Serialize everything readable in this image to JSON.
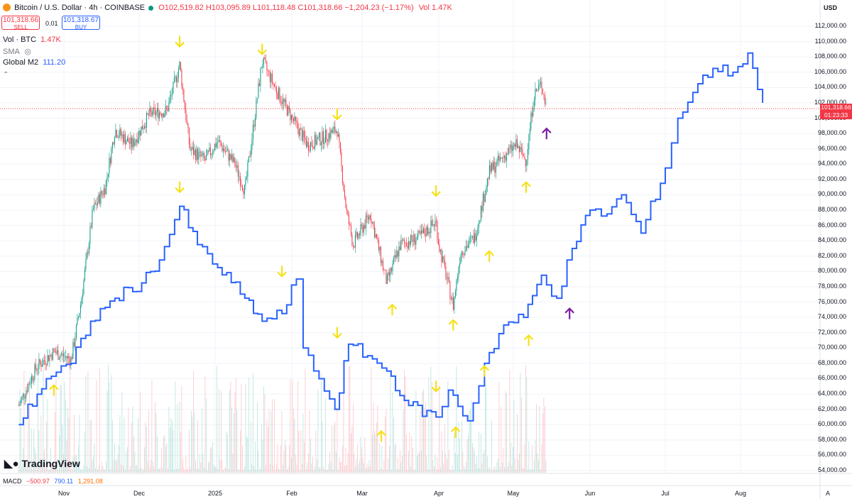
{
  "header": {
    "symbol": "Bitcoin / U.S. Dollar · 4h · COINBASE",
    "ohlc": "O102,519.82 H103,095.89 L101,118.48 C101,318.66 −1,204.23 (−1.17%)",
    "vol": "Vol 1.47K",
    "sell_price": "101,318.66",
    "sell_label": "SELL",
    "spread": "0.01",
    "buy_price": "101,318.67",
    "buy_label": "BUY"
  },
  "legend": {
    "vol_name": "Vol · BTC",
    "vol_value": "1.47K",
    "sma_label": "SMA",
    "m2_name": "Global M2",
    "m2_value": "111.20"
  },
  "macd": {
    "label": "MACD",
    "v1": "−500.97",
    "v2": "790.11",
    "v3": "1,291.08"
  },
  "price_axis": {
    "currency": "USD",
    "current_price": "101,318.66",
    "countdown": "01:23:33"
  },
  "branding": {
    "logo_text": "TradingView"
  },
  "colors": {
    "up": "#089981",
    "down": "#f23645",
    "m2_line": "#2962ff",
    "arrow_yellow": "#f5e11b",
    "arrow_purple": "#7b1fa2"
  },
  "chart_data": {
    "type": "line",
    "x_labels": [
      "Nov",
      "Dec",
      "2025",
      "Feb",
      "Mar",
      "Apr",
      "May",
      "Jun",
      "Jul",
      "Aug"
    ],
    "y_ticks": [
      54000,
      56000,
      58000,
      60000,
      62000,
      64000,
      66000,
      68000,
      70000,
      72000,
      74000,
      76000,
      78000,
      80000,
      82000,
      84000,
      86000,
      88000,
      90000,
      92000,
      94000,
      96000,
      98000,
      100000,
      102000,
      104000,
      106000,
      108000,
      110000,
      112000
    ],
    "ylim": [
      54000,
      112000
    ],
    "series": [
      {
        "name": "Bitcoin / U.S. Dollar",
        "style": "candles",
        "color": "#089981",
        "values": [
          [
            "Oct 14",
            62500
          ],
          [
            "Oct 21",
            67500
          ],
          [
            "Oct 28",
            69500
          ],
          [
            "Nov 04",
            68500
          ],
          [
            "Nov 08",
            76000
          ],
          [
            "Nov 13",
            88000
          ],
          [
            "Nov 18",
            91000
          ],
          [
            "Nov 22",
            98500
          ],
          [
            "Nov 29",
            96500
          ],
          [
            "Dec 05",
            100500
          ],
          [
            "Dec 12",
            101000
          ],
          [
            "Dec 17",
            107000
          ],
          [
            "Dec 21",
            96000
          ],
          [
            "Dec 27",
            94500
          ],
          [
            "Jan 02",
            97000
          ],
          [
            "Jan 09",
            94000
          ],
          [
            "Jan 13",
            90500
          ],
          [
            "Jan 20",
            107500
          ],
          [
            "Jan 26",
            103500
          ],
          [
            "Feb 02",
            99500
          ],
          [
            "Feb 08",
            96500
          ],
          [
            "Feb 15",
            97500
          ],
          [
            "Feb 21",
            98500
          ],
          [
            "Feb 25",
            88000
          ],
          [
            "Feb 28",
            83500
          ],
          [
            "Mar 04",
            87500
          ],
          [
            "Mar 10",
            78500
          ],
          [
            "Mar 15",
            83500
          ],
          [
            "Mar 22",
            84500
          ],
          [
            "Mar 28",
            86500
          ],
          [
            "Apr 01",
            83500
          ],
          [
            "Apr 07",
            75500
          ],
          [
            "Apr 10",
            82500
          ],
          [
            "Apr 16",
            84500
          ],
          [
            "Apr 22",
            93000
          ],
          [
            "Apr 28",
            95000
          ],
          [
            "May 02",
            96500
          ],
          [
            "May 06",
            94500
          ],
          [
            "May 09",
            103000
          ],
          [
            "May 12",
            104500
          ],
          [
            "May 14",
            101300
          ]
        ]
      },
      {
        "name": "Global M2",
        "style": "line",
        "color": "#2962ff",
        "values": [
          [
            "Oct 14",
            60000
          ],
          [
            "Oct 25",
            66000
          ],
          [
            "Nov 04",
            68000
          ],
          [
            "Nov 12",
            73500
          ],
          [
            "Nov 22",
            76500
          ],
          [
            "Dec 02",
            78500
          ],
          [
            "Dec 09",
            81500
          ],
          [
            "Dec 17",
            88500
          ],
          [
            "Dec 24",
            83500
          ],
          [
            "Jan 02",
            80500
          ],
          [
            "Jan 13",
            76500
          ],
          [
            "Jan 20",
            73500
          ],
          [
            "Jan 28",
            74500
          ],
          [
            "Feb 03",
            79000
          ],
          [
            "Feb 06",
            70000
          ],
          [
            "Feb 13",
            66000
          ],
          [
            "Feb 20",
            62000
          ],
          [
            "Feb 26",
            70500
          ],
          [
            "Mar 03",
            69000
          ],
          [
            "Mar 10",
            67000
          ],
          [
            "Mar 18",
            62500
          ],
          [
            "Mar 28",
            61000
          ],
          [
            "Apr 05",
            64500
          ],
          [
            "Apr 13",
            60500
          ],
          [
            "Apr 20",
            68000
          ],
          [
            "Apr 28",
            73000
          ],
          [
            "May 05",
            74000
          ],
          [
            "May 12",
            79500
          ],
          [
            "May 18",
            76500
          ],
          [
            "May 24",
            83000
          ],
          [
            "Jun 01",
            88000
          ],
          [
            "Jun 08",
            87500
          ],
          [
            "Jun 14",
            90000
          ],
          [
            "Jun 22",
            85000
          ],
          [
            "Jul 01",
            93500
          ],
          [
            "Jul 06",
            100000
          ],
          [
            "Jul 14",
            104500
          ],
          [
            "Jul 20",
            106500
          ],
          [
            "Jul 28",
            106000
          ],
          [
            "Aug 04",
            108500
          ],
          [
            "Aug 10",
            102000
          ]
        ]
      }
    ],
    "markers": [
      {
        "shape": "arrow-down",
        "color": "yellow",
        "x": "Dec 17",
        "y": 110000
      },
      {
        "shape": "arrow-down",
        "color": "yellow",
        "x": "Jan 20",
        "y": 109000
      },
      {
        "shape": "arrow-down",
        "color": "yellow",
        "x": "Feb 21",
        "y": 100500
      },
      {
        "shape": "arrow-down",
        "color": "yellow",
        "x": "Mar 28",
        "y": 90500
      },
      {
        "shape": "arrow-down",
        "color": "yellow",
        "x": "Dec 17",
        "y": 91000
      },
      {
        "shape": "arrow-down",
        "color": "yellow",
        "x": "Jan 28",
        "y": 80000
      },
      {
        "shape": "arrow-down",
        "color": "yellow",
        "x": "Feb 21",
        "y": 72000
      },
      {
        "shape": "arrow-down",
        "color": "yellow",
        "x": "Mar 28",
        "y": 65000
      },
      {
        "shape": "arrow-up",
        "color": "yellow",
        "x": "Oct 28",
        "y": 64500
      },
      {
        "shape": "arrow-up",
        "color": "yellow",
        "x": "Mar 12",
        "y": 75000
      },
      {
        "shape": "arrow-up",
        "color": "yellow",
        "x": "Apr 07",
        "y": 73000
      },
      {
        "shape": "arrow-up",
        "color": "yellow",
        "x": "Apr 22",
        "y": 82000
      },
      {
        "shape": "arrow-up",
        "color": "yellow",
        "x": "May 06",
        "y": 91000
      },
      {
        "shape": "arrow-up",
        "color": "yellow",
        "x": "Mar 08",
        "y": 58500
      },
      {
        "shape": "arrow-up",
        "color": "yellow",
        "x": "Apr 08",
        "y": 59000
      },
      {
        "shape": "arrow-up",
        "color": "yellow",
        "x": "Apr 20",
        "y": 67000
      },
      {
        "shape": "arrow-up",
        "color": "yellow",
        "x": "May 07",
        "y": 71000
      },
      {
        "shape": "arrow-up",
        "color": "purple",
        "x": "May 14",
        "y": 98000
      },
      {
        "shape": "arrow-up",
        "color": "purple",
        "x": "May 23",
        "y": 74500
      }
    ]
  }
}
